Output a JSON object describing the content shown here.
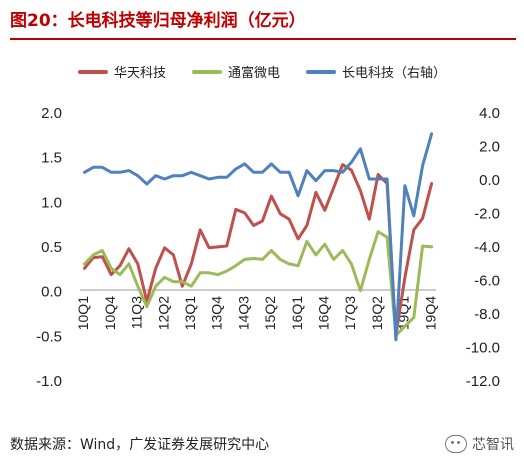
{
  "header": {
    "title": "图20：长电科技等归母净利润（亿元）"
  },
  "legend": {
    "items": [
      {
        "label": "华天科技",
        "color": "#C0504D"
      },
      {
        "label": "通富微电",
        "color": "#9BBB59"
      },
      {
        "label": "长电科技（右轴）",
        "color": "#4F81BD"
      }
    ]
  },
  "footer": {
    "source": "数据来源：Wind，广发证券发展研究中心",
    "watermark": "芯智讯",
    "watermark_icon": "wechat-icon"
  },
  "chart_data": {
    "type": "line",
    "title": "长电科技等归母净利润（亿元）",
    "x": [
      "10Q1",
      "10Q2",
      "10Q3",
      "10Q4",
      "11Q1",
      "11Q2",
      "11Q3",
      "11Q4",
      "12Q1",
      "12Q2",
      "12Q3",
      "12Q4",
      "13Q1",
      "13Q2",
      "13Q3",
      "13Q4",
      "14Q1",
      "14Q2",
      "14Q3",
      "14Q4",
      "15Q1",
      "15Q2",
      "15Q3",
      "15Q4",
      "16Q1",
      "16Q2",
      "16Q3",
      "16Q4",
      "17Q1",
      "17Q2",
      "17Q3",
      "17Q4",
      "18Q1",
      "18Q2",
      "18Q3",
      "18Q4",
      "19Q1",
      "19Q2",
      "19Q3",
      "19Q4"
    ],
    "x_tick_labels": [
      "10Q1",
      "10Q4",
      "11Q3",
      "12Q2",
      "13Q1",
      "13Q4",
      "14Q3",
      "15Q2",
      "16Q1",
      "16Q4",
      "17Q3",
      "18Q2",
      "19Q1",
      "19Q4"
    ],
    "left_axis": {
      "ylim": [
        -1.0,
        2.0
      ],
      "ticks": [
        "-1.0",
        "-0.5",
        "0.0",
        "0.5",
        "1.0",
        "1.5",
        "2.0"
      ]
    },
    "right_axis": {
      "ylim": [
        -12.0,
        4.0
      ],
      "ticks": [
        "-12.0",
        "-10.0",
        "-8.0",
        "-6.0",
        "-4.0",
        "-2.0",
        "0.0",
        "2.0",
        "4.0"
      ]
    },
    "series": [
      {
        "name": "华天科技",
        "axis": "left",
        "color": "#C0504D",
        "values": [
          0.25,
          0.37,
          0.38,
          0.18,
          0.28,
          0.47,
          0.3,
          -0.12,
          0.25,
          0.48,
          0.4,
          0.05,
          0.3,
          0.68,
          0.48,
          0.49,
          0.5,
          0.91,
          0.87,
          0.73,
          0.78,
          1.06,
          0.86,
          0.8,
          0.58,
          0.73,
          1.1,
          0.9,
          1.15,
          1.41,
          1.35,
          1.12,
          0.8,
          1.3,
          1.2,
          -0.5,
          0.15,
          0.68,
          0.81,
          1.2
        ]
      },
      {
        "name": "通富微电",
        "axis": "left",
        "color": "#9BBB59",
        "values": [
          0.3,
          0.4,
          0.45,
          0.25,
          0.18,
          0.3,
          0.05,
          -0.18,
          0.05,
          0.15,
          0.1,
          0.1,
          0.05,
          0.2,
          0.2,
          0.18,
          0.22,
          0.28,
          0.35,
          0.36,
          0.35,
          0.45,
          0.35,
          0.3,
          0.28,
          0.55,
          0.4,
          0.52,
          0.35,
          0.45,
          0.3,
          0.0,
          0.35,
          0.66,
          0.6,
          -0.5,
          -0.4,
          -0.3,
          0.5,
          0.49
        ]
      },
      {
        "name": "长电科技（右轴）",
        "axis": "right",
        "color": "#4F81BD",
        "values": [
          0.4,
          0.7,
          0.7,
          0.4,
          0.4,
          0.5,
          0.2,
          -0.3,
          0.2,
          0.0,
          0.2,
          0.2,
          0.4,
          0.2,
          0.0,
          0.1,
          0.1,
          0.6,
          0.9,
          0.4,
          0.4,
          0.9,
          0.4,
          0.4,
          -1.0,
          0.5,
          -0.1,
          0.5,
          0.5,
          0.4,
          1.0,
          1.8,
          0.0,
          0.0,
          0.0,
          -9.6,
          -0.4,
          -2.2,
          0.8,
          2.7
        ]
      }
    ],
    "grid": false,
    "legend_position": "top"
  }
}
